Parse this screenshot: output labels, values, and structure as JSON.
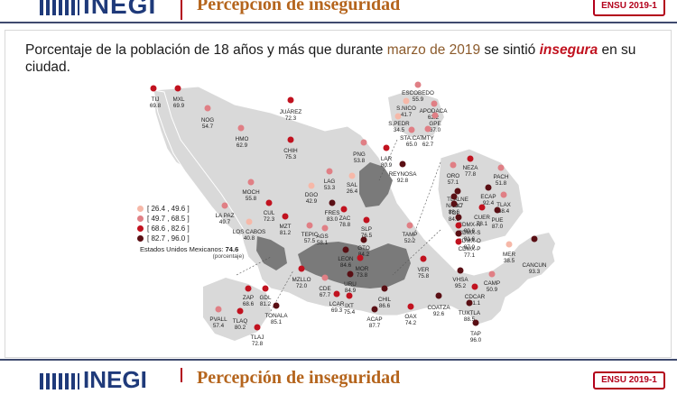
{
  "header": {
    "logo": "INEGI",
    "title": "Percepción de inseguridad",
    "badge": "ENSU 2019-1"
  },
  "question": {
    "part1": "Porcentaje de la población de 18 años y más que durante ",
    "month": "marzo de 2019",
    "part2": " se sintió ",
    "emph": "insegura",
    "part3": " en su ciudad."
  },
  "legend": {
    "ranges": [
      {
        "label": "[ 26.4 , 49.6 ]",
        "color": "#f6b8a8"
      },
      {
        "label": "[ 49.7 , 68.5 ]",
        "color": "#e07f85"
      },
      {
        "label": "[ 68.6 , 82.6 ]",
        "color": "#c1121f"
      },
      {
        "label": "[ 82.7 , 96.0 ]",
        "color": "#5a0f14"
      }
    ],
    "national_label": "Estados Unidos Mexicanos:",
    "national_value": "74.6",
    "national_unit": "(porcentaje)"
  },
  "cities": [
    {
      "name": "TIJ",
      "value": "69.8"
    },
    {
      "name": "MXL",
      "value": "69.9"
    },
    {
      "name": "NOG",
      "value": "54.7"
    },
    {
      "name": "JUÁREZ",
      "value": "72.3"
    },
    {
      "name": "HMO",
      "value": "62.9"
    },
    {
      "name": "CHIH",
      "value": "75.3"
    },
    {
      "name": "ESCOBEDO",
      "value": "55.9"
    },
    {
      "name": "S.NICO",
      "value": "41.7"
    },
    {
      "name": "APODACA",
      "value": "62.2"
    },
    {
      "name": "GPE",
      "value": "67.0"
    },
    {
      "name": "S.PEDR",
      "value": "34.5"
    },
    {
      "name": "STA.CAT",
      "value": "65.0"
    },
    {
      "name": "MTY",
      "value": "62.7"
    },
    {
      "name": "PNG",
      "value": "53.8"
    },
    {
      "name": "LAR",
      "value": "80.9"
    },
    {
      "name": "REYNOSA",
      "value": "92.8"
    },
    {
      "name": "MOCH",
      "value": "55.8"
    },
    {
      "name": "LAG",
      "value": "53.3"
    },
    {
      "name": "SAL",
      "value": "26.4"
    },
    {
      "name": "DGO",
      "value": "42.9"
    },
    {
      "name": "CUL",
      "value": "72.3"
    },
    {
      "name": "LA PAZ",
      "value": "49.7"
    },
    {
      "name": "LOS CABOS",
      "value": "40.8"
    },
    {
      "name": "MZT",
      "value": "81.2"
    },
    {
      "name": "FRES",
      "value": "83.0"
    },
    {
      "name": "ZAC",
      "value": "78.8"
    },
    {
      "name": "AGS",
      "value": "58.1"
    },
    {
      "name": "SLP",
      "value": "76.5"
    },
    {
      "name": "TEPIC",
      "value": "57.5"
    },
    {
      "name": "GTO",
      "value": "84.2"
    },
    {
      "name": "TAMP",
      "value": "52.2"
    },
    {
      "name": "LEON",
      "value": "84.6"
    },
    {
      "name": "MOR",
      "value": "73.8"
    },
    {
      "name": "VER",
      "value": "75.8"
    },
    {
      "name": "MZLLO",
      "value": "72.0"
    },
    {
      "name": "CDE",
      "value": "67.7"
    },
    {
      "name": "URU",
      "value": "84.9"
    },
    {
      "name": "LCAR",
      "value": "69.3"
    },
    {
      "name": "IXT",
      "value": "75.4"
    },
    {
      "name": "CHIL",
      "value": "86.6"
    },
    {
      "name": "ACAP",
      "value": "87.7"
    },
    {
      "name": "OAX",
      "value": "74.2"
    },
    {
      "name": "ZAP",
      "value": "68.6"
    },
    {
      "name": "GDL",
      "value": "81.2"
    },
    {
      "name": "TLAQ",
      "value": "80.2"
    },
    {
      "name": "TONALA",
      "value": "85.1"
    },
    {
      "name": "TLAJ",
      "value": "72.8"
    },
    {
      "name": "PVALL",
      "value": "57.4"
    },
    {
      "name": "ORO",
      "value": "57.1"
    },
    {
      "name": "NEZA",
      "value": "77.8"
    },
    {
      "name": "PACH",
      "value": "51.8"
    },
    {
      "name": "TLALNE",
      "value": "88.7"
    },
    {
      "name": "NAUC",
      "value": "88.6"
    },
    {
      "name": "ECAP",
      "value": "92.4"
    },
    {
      "name": "TOL",
      "value": "84.3"
    },
    {
      "name": "CUER",
      "value": "78.1"
    },
    {
      "name": "TLAX",
      "value": "68.4"
    },
    {
      "name": "PUE",
      "value": "87.0"
    },
    {
      "name": "CDMX-N",
      "value": "89.6"
    },
    {
      "name": "CDMX-S",
      "value": "81.6"
    },
    {
      "name": "CDMX-O",
      "value": "87.0"
    },
    {
      "name": "CDMX-P",
      "value": "77.1"
    },
    {
      "name": "MER",
      "value": "38.5"
    },
    {
      "name": "CANCUN",
      "value": "93.3"
    },
    {
      "name": "CAMP",
      "value": "50.9"
    },
    {
      "name": "VHSA",
      "value": "95.2"
    },
    {
      "name": "CDCAR",
      "value": "71.1"
    },
    {
      "name": "COATZA",
      "value": "92.6"
    },
    {
      "name": "TUXTLA",
      "value": "88.5"
    },
    {
      "name": "TAP",
      "value": "96.0"
    }
  ],
  "footer": {
    "logo": "INEGI",
    "title": "Percepción de inseguridad",
    "badge": "ENSU 2019-1"
  }
}
